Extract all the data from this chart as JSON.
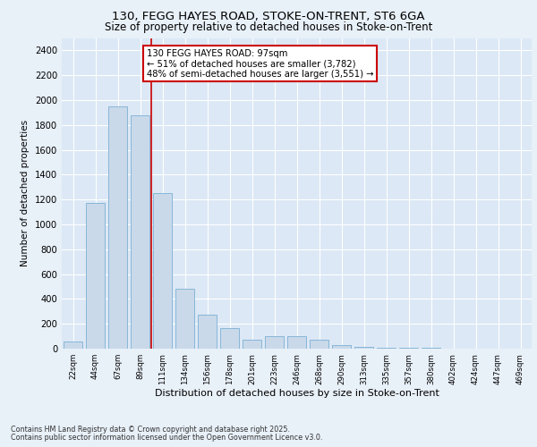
{
  "title_line1": "130, FEGG HAYES ROAD, STOKE-ON-TRENT, ST6 6GA",
  "title_line2": "Size of property relative to detached houses in Stoke-on-Trent",
  "xlabel": "Distribution of detached houses by size in Stoke-on-Trent",
  "ylabel": "Number of detached properties",
  "categories": [
    "22sqm",
    "44sqm",
    "67sqm",
    "89sqm",
    "111sqm",
    "134sqm",
    "156sqm",
    "178sqm",
    "201sqm",
    "223sqm",
    "246sqm",
    "268sqm",
    "290sqm",
    "313sqm",
    "335sqm",
    "357sqm",
    "380sqm",
    "402sqm",
    "424sqm",
    "447sqm",
    "469sqm"
  ],
  "values": [
    60,
    1175,
    1950,
    1875,
    1250,
    480,
    270,
    165,
    75,
    100,
    100,
    70,
    30,
    15,
    10,
    5,
    5,
    3,
    2,
    2,
    2
  ],
  "bar_color": "#c9d9ea",
  "bar_edge_color": "#7bafd4",
  "highlight_index": 3,
  "highlight_line_color": "#cc0000",
  "annotation_text": "130 FEGG HAYES ROAD: 97sqm\n← 51% of detached houses are smaller (3,782)\n48% of semi-detached houses are larger (3,551) →",
  "annotation_box_color": "#ffffff",
  "annotation_box_edge": "#cc0000",
  "ylim": [
    0,
    2500
  ],
  "yticks": [
    0,
    200,
    400,
    600,
    800,
    1000,
    1200,
    1400,
    1600,
    1800,
    2000,
    2200,
    2400
  ],
  "footnote_line1": "Contains HM Land Registry data © Crown copyright and database right 2025.",
  "footnote_line2": "Contains public sector information licensed under the Open Government Licence v3.0.",
  "bg_color": "#e8f0f8",
  "plot_bg_color": "#dce8f5"
}
